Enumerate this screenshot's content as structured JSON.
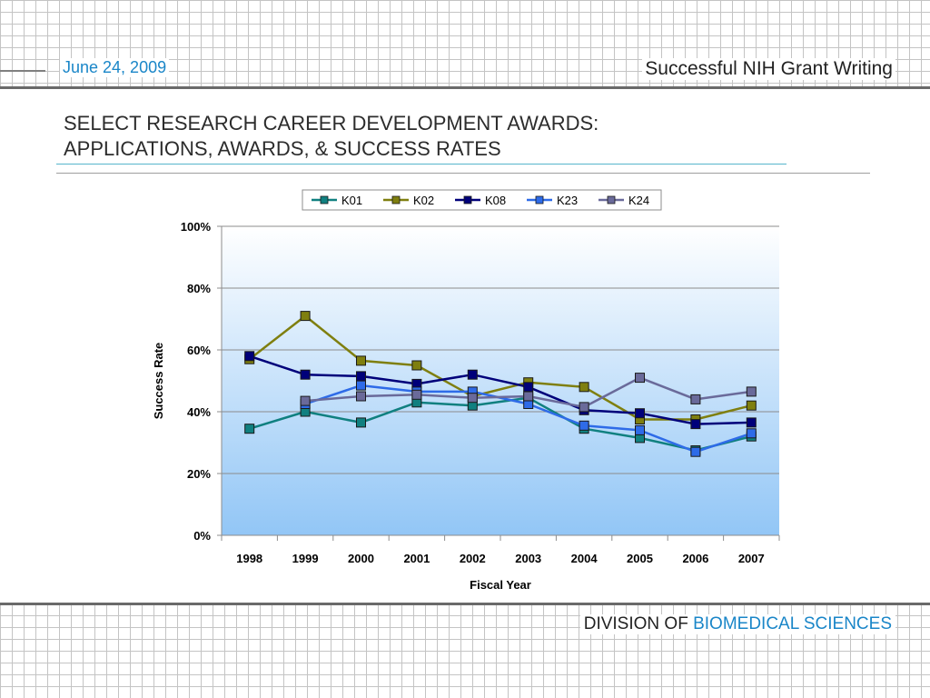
{
  "header": {
    "date": "June 24, 2009",
    "title": "Successful NIH Grant Writing"
  },
  "slide": {
    "title_line1": "SELECT RESEARCH CAREER DEVELOPMENT AWARDS:",
    "title_line2": "APPLICATIONS, AWARDS, & SUCCESS RATES"
  },
  "footer": {
    "prefix": "DIVISION OF",
    "accent": "BIOMEDICAL SCIENCES"
  },
  "colors": {
    "accent": "#1a86c8",
    "plot_top": "#ffffff",
    "plot_bottom": "#92c6f6"
  },
  "chart_data": {
    "type": "line",
    "xlabel": "Fiscal Year",
    "ylabel": "Success Rate",
    "ylim": [
      0,
      100
    ],
    "yticks": [
      "0%",
      "20%",
      "40%",
      "60%",
      "80%",
      "100%"
    ],
    "categories": [
      "1998",
      "1999",
      "2000",
      "2001",
      "2002",
      "2003",
      "2004",
      "2005",
      "2006",
      "2007"
    ],
    "legend_position": "top",
    "grid": true,
    "series": [
      {
        "name": "K01",
        "color": "#108080",
        "values": [
          34.5,
          40.0,
          36.5,
          43.0,
          42.0,
          44.5,
          34.5,
          31.5,
          27.5,
          32.0
        ]
      },
      {
        "name": "K02",
        "color": "#7f7f0f",
        "values": [
          57.0,
          71.0,
          56.5,
          55.0,
          45.0,
          49.5,
          48.0,
          37.5,
          37.5,
          42.0
        ]
      },
      {
        "name": "K08",
        "color": "#00007a",
        "values": [
          58.0,
          52.0,
          51.5,
          49.0,
          52.0,
          48.0,
          40.5,
          39.5,
          36.0,
          36.5
        ]
      },
      {
        "name": "K23",
        "color": "#2e6be8",
        "values": [
          null,
          42.5,
          48.5,
          46.5,
          46.5,
          42.5,
          35.5,
          34.0,
          27.0,
          33.0
        ]
      },
      {
        "name": "K24",
        "color": "#6a6a9a",
        "values": [
          null,
          43.5,
          45.0,
          45.5,
          44.5,
          45.0,
          41.5,
          51.0,
          44.0,
          46.5
        ]
      }
    ]
  }
}
